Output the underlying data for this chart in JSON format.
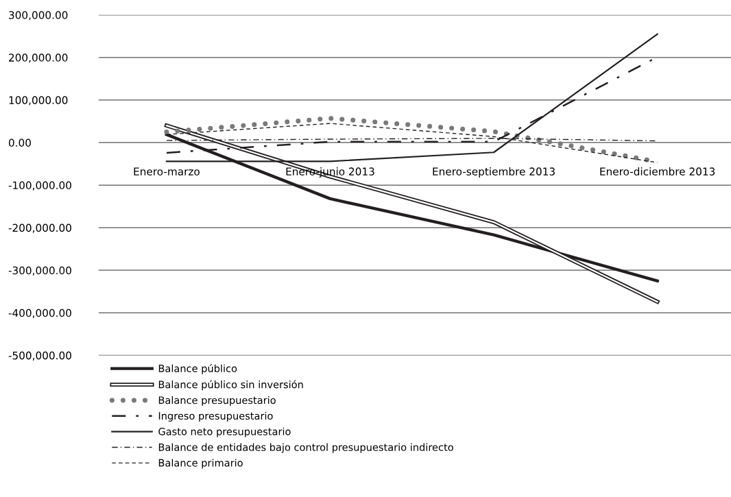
{
  "chart_data": {
    "type": "line",
    "categories": [
      "Enero-marzo",
      "Enero-junio 2013",
      "Enero-septiembre 2013",
      "Enero-diciembre 2013"
    ],
    "series": [
      {
        "name": "Balance público",
        "color": "#231f20",
        "line_style": "solid",
        "values": [
          19000,
          -132000,
          -217000,
          -325000
        ]
      },
      {
        "name": "Balance público sin inversión",
        "color": "#231f20",
        "line_style": "solid",
        "values": [
          40000,
          -80000,
          -187000,
          -374000
        ]
      },
      {
        "name": "Balance presupuestario",
        "color": "#7a7a7a",
        "line_style": "dotted",
        "values": [
          25000,
          57000,
          26000,
          -45000
        ]
      },
      {
        "name": "Ingreso presupuestario",
        "color": "#231f20",
        "line_style": "long_dashdot",
        "values": [
          -24000,
          2000,
          2000,
          201000
        ]
      },
      {
        "name": "Gasto neto presupuestario",
        "color": "#231f20",
        "line_style": "solid",
        "values": [
          -44000,
          -44000,
          -23000,
          255000
        ]
      },
      {
        "name": "Balance de entidades bajo control presupuestario indirecto",
        "color": "#231f20",
        "line_style": "dashdot",
        "values": [
          5000,
          8000,
          10000,
          4000
        ]
      },
      {
        "name": "Balance primario",
        "color": "#231f20",
        "line_style": "dashed",
        "values": [
          19000,
          45000,
          14000,
          -47000
        ]
      }
    ],
    "ylim": [
      -500000,
      300000
    ],
    "yticks": [
      {
        "value": -500000,
        "label": "-500,000.00"
      },
      {
        "value": -400000,
        "label": "-400,000.00"
      },
      {
        "value": -300000,
        "label": "-300,000.00"
      },
      {
        "value": -200000,
        "label": "-200,000.00"
      },
      {
        "value": -100000,
        "label": "-100,000.00"
      },
      {
        "value": 0,
        "label": "0.00"
      },
      {
        "value": 100000,
        "label": "100,000.00"
      },
      {
        "value": 200000,
        "label": "200,000.00"
      },
      {
        "value": 300000,
        "label": "300,000.00"
      }
    ],
    "grid": "y",
    "legend": "bottom left"
  }
}
